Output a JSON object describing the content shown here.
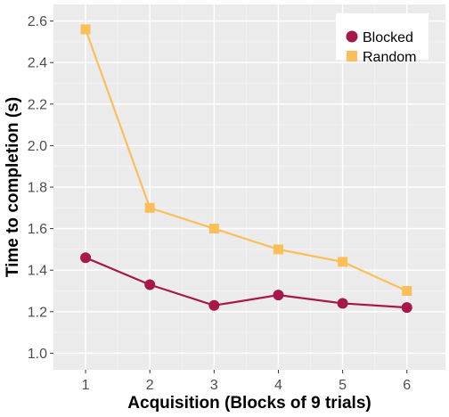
{
  "chart_data": {
    "type": "line",
    "xlabel": "Acquisition (Blocks of 9 trials)",
    "ylabel": "Time to completion (s)",
    "x": [
      1,
      2,
      3,
      4,
      5,
      6
    ],
    "xlim": [
      0.5,
      6.6
    ],
    "ylim": [
      0.92,
      2.68
    ],
    "yticks": [
      1.0,
      1.2,
      1.4,
      1.6,
      1.8,
      2.0,
      2.2,
      2.4,
      2.6
    ],
    "ytick_labels": [
      "1.0",
      "1.2",
      "1.4",
      "1.6",
      "1.8",
      "2.0",
      "2.2",
      "2.4",
      "2.6"
    ],
    "xticks": [
      1,
      2,
      3,
      4,
      5,
      6
    ],
    "xtick_labels": [
      "1",
      "2",
      "3",
      "4",
      "5",
      "6"
    ],
    "grid": true,
    "legend_position": "top-right",
    "background_color": "#ebebeb",
    "series": [
      {
        "name": "Blocked",
        "values": [
          1.46,
          1.33,
          1.23,
          1.28,
          1.24,
          1.22
        ],
        "color": "#a6184b",
        "marker": "circle"
      },
      {
        "name": "Random",
        "values": [
          2.56,
          1.7,
          1.6,
          1.5,
          1.44,
          1.3
        ],
        "color": "#fbbf5a",
        "marker": "square"
      }
    ]
  }
}
